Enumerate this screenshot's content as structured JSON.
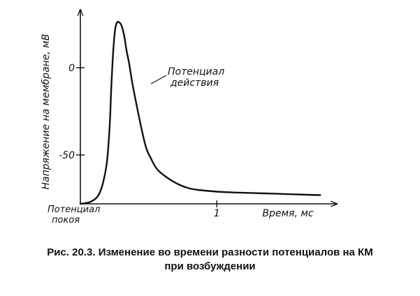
{
  "chart_data": {
    "type": "line",
    "ylabel": "Напряжение на мембране, мВ",
    "xlabel": "Время, мс",
    "y_ticks": [
      {
        "value": 0,
        "label": "0"
      },
      {
        "value": -50,
        "label": "-50"
      }
    ],
    "x_ticks": [
      {
        "value": 1,
        "label": "1"
      }
    ],
    "xlim": [
      -0.45,
      2.15
    ],
    "ylim": [
      -78,
      30
    ],
    "series": [
      {
        "name": "Потенциал действия",
        "x": [
          -0.45,
          -0.35,
          -0.27,
          -0.22,
          -0.17,
          -0.14,
          -0.12,
          -0.1,
          -0.08,
          -0.06,
          -0.04,
          -0.02,
          0.0,
          0.02,
          0.04,
          0.07,
          0.1,
          0.15,
          0.2,
          0.25,
          0.3,
          0.35,
          0.4,
          0.5,
          0.6,
          0.7,
          0.8,
          1.0,
          1.2,
          1.5,
          1.8,
          2.1
        ],
        "y": [
          -78,
          -77,
          -74,
          -68,
          -55,
          -35,
          -10,
          10,
          22,
          26,
          26,
          25,
          22,
          17,
          10,
          2,
          -8,
          -22,
          -35,
          -46,
          -52,
          -57,
          -60,
          -64,
          -67,
          -69,
          -70,
          -71,
          -71.5,
          -72,
          -72.5,
          -73
        ]
      }
    ],
    "annotations": [
      {
        "text_lines": [
          "Потенциал",
          "действия"
        ],
        "points_to": "Потенциал действия"
      },
      {
        "text_lines": [
          "Потенциал",
          "покоя"
        ],
        "position": "bottom-left"
      }
    ]
  },
  "caption": {
    "line1": "Рис. 20.3. Изменение во времени разности потенциалов на КМ",
    "line2": "при возбуждении"
  }
}
